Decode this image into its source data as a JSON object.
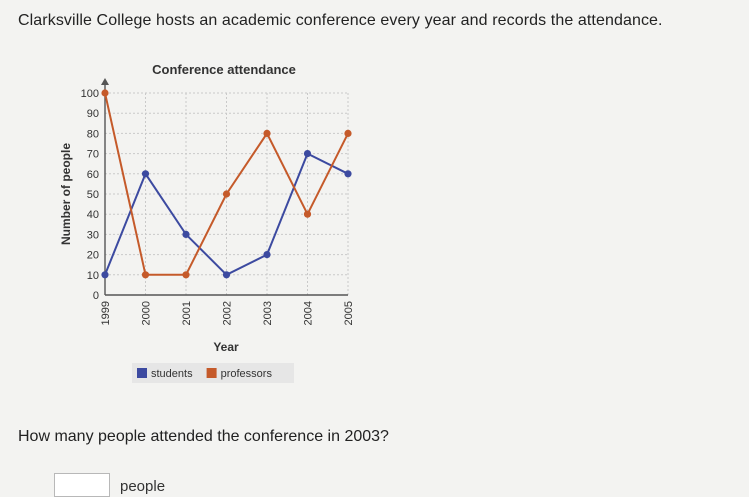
{
  "prompt_text": "Clarksville College hosts an academic conference every year and records the attendance.",
  "question_text": "How many people attended the conference in 2003?",
  "answer": {
    "value": "",
    "placeholder": "",
    "unit": "people"
  },
  "colors": {
    "students": "#3c4aa0",
    "professors": "#c55a2a",
    "grid": "#c9c9c9",
    "axis": "#555555"
  },
  "chart_data": {
    "type": "line",
    "title": "Conference attendance",
    "xlabel": "Year",
    "ylabel": "Number of people",
    "x": [
      "1999",
      "2000",
      "2001",
      "2002",
      "2003",
      "2004",
      "2005"
    ],
    "ylim": [
      0,
      100
    ],
    "yticks": [
      0,
      10,
      20,
      30,
      40,
      50,
      60,
      70,
      80,
      90,
      100
    ],
    "grid": true,
    "legend": "bottom",
    "series": [
      {
        "name": "students",
        "color": "#3c4aa0",
        "values": [
          10,
          60,
          30,
          10,
          20,
          70,
          60
        ]
      },
      {
        "name": "professors",
        "color": "#c55a2a",
        "values": [
          100,
          10,
          10,
          50,
          80,
          40,
          80
        ]
      }
    ]
  }
}
